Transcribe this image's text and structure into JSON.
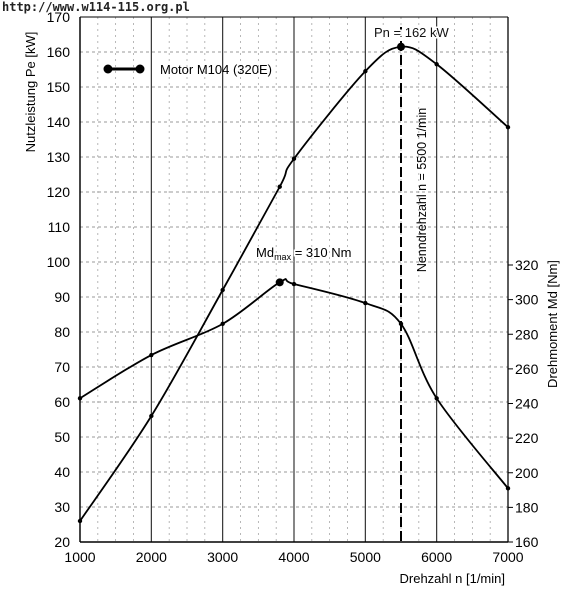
{
  "watermark": "http://www.w114-115.org.pl",
  "chart_data": {
    "type": "line",
    "x": {
      "label": "Drehzahl n [1/min]",
      "ticks": [
        1000,
        2000,
        3000,
        4000,
        5000,
        6000,
        7000
      ],
      "lim": [
        1000,
        7000
      ]
    },
    "y_left": {
      "label": "Nutzleistung Pe [kW]",
      "ticks": [
        20,
        30,
        40,
        50,
        60,
        70,
        80,
        90,
        100,
        110,
        120,
        130,
        140,
        150,
        160,
        170
      ],
      "lim": [
        20,
        170
      ]
    },
    "y_right": {
      "label": "Drehmoment Md [Nm]",
      "ticks": [
        160,
        180,
        200,
        220,
        240,
        260,
        280,
        300,
        320
      ],
      "lim": [
        160,
        320
      ]
    },
    "grid": "dashed",
    "legend": {
      "label": "Motor M104 (320E)",
      "placement": "top-left"
    },
    "series": [
      {
        "axis": "left",
        "x": [
          1000,
          2000,
          3000,
          3800,
          4000,
          5000,
          5500,
          6000,
          7000
        ],
        "values": [
          26,
          56,
          92,
          121.5,
          129.5,
          154.5,
          161.5,
          156.5,
          138.5
        ]
      },
      {
        "axis": "right",
        "x": [
          1000,
          2000,
          3000,
          3800,
          4000,
          5000,
          5500,
          6000,
          7000
        ],
        "values": [
          243,
          268,
          286,
          310,
          309,
          298,
          286,
          243,
          191
        ]
      }
    ],
    "annotations": {
      "power_peak": "Pn = 162 kW",
      "torque_peak_prefix": "Md",
      "torque_peak_sub": "max",
      "torque_peak_suffix": " = 310 Nm",
      "rated_speed": "Nenndrehzahl  n = 5500 1/min",
      "rated_speed_x": 5500
    }
  }
}
